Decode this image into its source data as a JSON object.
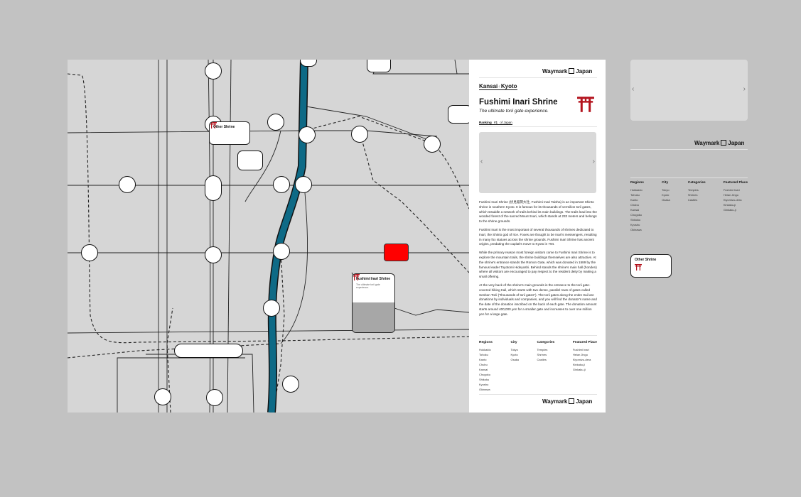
{
  "brand": {
    "name_left": "Waymark",
    "name_right": "Japan"
  },
  "breadcrumb": {
    "region": "Kansai",
    "city": "Kyoto"
  },
  "place": {
    "title": "Fushimi Inari Shrine",
    "subtitle": "The ultimate torii gate experience.",
    "ranking_label": "Ranking",
    "ranking_value": "#1",
    "ranking_suffix": "of Japan"
  },
  "article": [
    "Fushimi Inari Shrine (伏見稲荷大社, Fushimi Inari Taisha) is an important Shinto shrine in southern Kyoto. It is famous for its thousands of vermilion torii gates, which straddle a network of trails behind its main buildings. The trails lead into the wooded forest of the sacred Mount Inari, which stands at 233 meters and belongs to the shrine grounds.",
    "Fushimi Inari is the most important of several thousands of shrines dedicated to Inari, the Shinto god of rice. Foxes are thought to be Inari's messengers, resulting in many fox statues across the shrine grounds. Fushimi Inari Shrine has ancient origins, predating the capital's move to Kyoto in 794.",
    "While the primary reason most foreign visitors come to Fushimi Inari Shrine is to explore the mountain trails, the shrine buildings themselves are also attractive. At the shrine's entrance stands the Romon Gate, which was donated in 1589 by the famous leader Toyotomi Hideyoshi. Behind stands the shrine's main hall (honden) where all visitors are encouraged to pay respect to the resident deity by making a small offering.",
    "At the very back of the shrine's main grounds is the entrance to the torii gate-covered hiking trail, which starts with two dense, parallel rows of gates called Senbon Torii (\"thousands of torii gates\"). The torii gates along the entire trail are donations by individuals and companies, and you will find the donator's name and the date of the donation inscribed on the back of each gate. The donation amount starts around 400,000 yen for a smaller gate and increases to over one million yen for a large gate."
  ],
  "footer": {
    "regions_title": "Regions",
    "regions": [
      "Hokkaido",
      "Tohoku",
      "Kanto",
      "Chubu",
      "Kansai",
      "Chugoku",
      "Shikoku",
      "Kyushu",
      "Okinawa"
    ],
    "city_title": "City",
    "cities": [
      "Tokyo",
      "Kyoto",
      "Osaka"
    ],
    "categories_title": "Categories",
    "categories": [
      "Temples",
      "Shrines",
      "Castles"
    ],
    "featured_title": "Featured Place",
    "featured": [
      "Fushimi Inari",
      "Heian Jingu",
      "Kiyomizu-dera",
      "Kinkaku-ji",
      "Ginkaku-ji"
    ]
  },
  "side_footer": {
    "featured": [
      "Fushimi Inari",
      "Heian Jingu",
      "Kiyomizu-dera",
      "Kinkaku-ji",
      "Ginkaku-ji"
    ]
  },
  "map_cards": {
    "other": {
      "title": "Other Shrine"
    },
    "selected": {
      "title": "Fushimi Inari Shrine",
      "subtitle": "The ultimate torii gate experience."
    }
  },
  "gallery": {
    "prev_icon": "chevron-left-icon",
    "next_icon": "chevron-right-icon"
  },
  "colors": {
    "river": "#0e6a86",
    "selected_pin": "#ff0000",
    "torii": "#b3121c",
    "map_bg": "#d6d6d6",
    "canvas_bg": "#c2c2c2"
  }
}
